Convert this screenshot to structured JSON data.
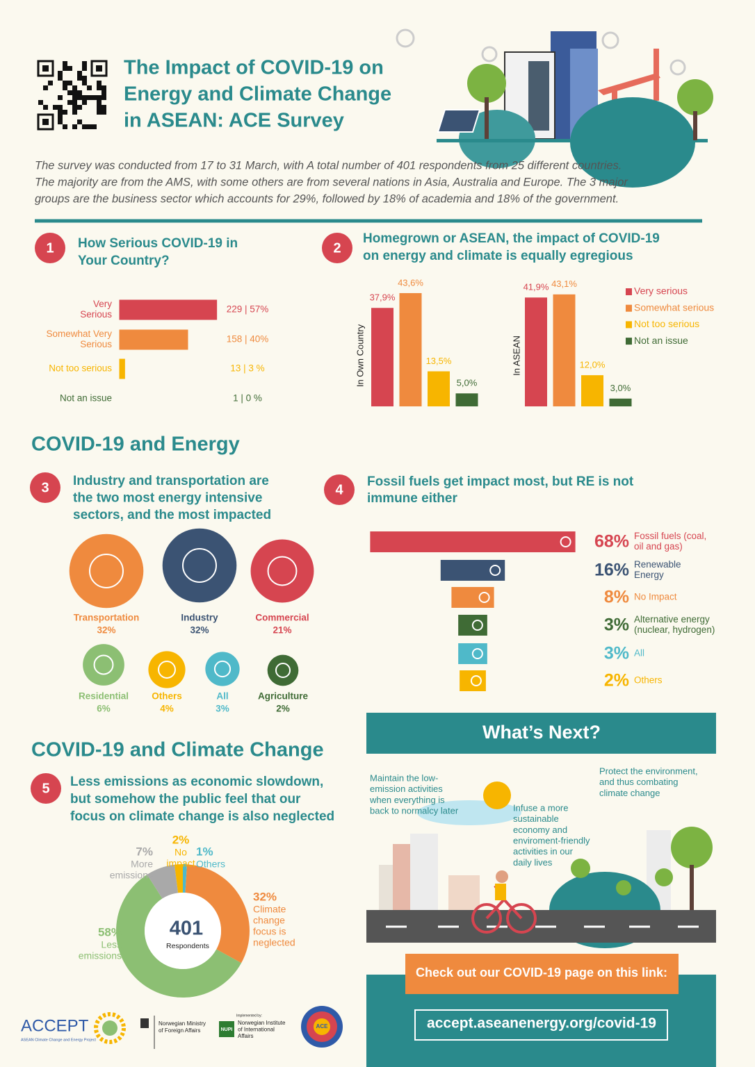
{
  "header": {
    "title": [
      "The Impact of COVID-19 on",
      "Energy and Climate Change",
      "in ASEAN: ACE Survey"
    ]
  },
  "intro": [
    "The survey was conducted from 17 to 31 March, with A total number of 401 respondents from 25 different countries.",
    "The majority are from the AMS, with some others are from several nations in Asia, Australia and Europe. The 3 major",
    "groups are the business sector which accounts for 29%, followed by 18% of academia and 18% of the government."
  ],
  "section1": {
    "number": "1",
    "title": [
      "How Serious COVID-19 in",
      "Your Country?"
    ],
    "chart": {
      "type": "bar",
      "categories": [
        [
          "Very",
          "Serious"
        ],
        [
          "Somewhat Very",
          "Serious"
        ],
        [
          "Not too serious"
        ],
        [
          "Not an issue"
        ]
      ],
      "values": [
        57,
        40,
        3,
        0
      ],
      "value_labels": [
        "229 | 57%",
        "158 | 40%",
        "13 | 3 %",
        "1 | 0 %"
      ],
      "colors": [
        "#d64550",
        "#ef8a3e",
        "#f7b500",
        "#3f6b35"
      ]
    }
  },
  "section2": {
    "number": "2",
    "title": [
      "Homegrown or ASEAN, the impact of COVID-19",
      "on energy and climate is equally egregious"
    ],
    "legend": [
      "Very serious",
      "Somewhat serious",
      "Not too serious",
      "Not an issue"
    ],
    "colors": [
      "#d64550",
      "#ef8a3e",
      "#f7b500",
      "#3f6b35"
    ],
    "charts": [
      {
        "type": "bar",
        "ylabel": "In Own Country",
        "values": [
          37.9,
          43.6,
          13.5,
          5.0
        ],
        "value_labels": [
          "37,9%",
          "43,6%",
          "13,5%",
          "5,0%"
        ]
      },
      {
        "type": "bar",
        "ylabel": "In ASEAN",
        "values": [
          41.9,
          43.1,
          12.0,
          3.0
        ],
        "value_labels": [
          "41,9%",
          "43,1%",
          "12,0%",
          "3,0%"
        ]
      }
    ]
  },
  "energy_heading": "COVID-19 and Energy",
  "section3": {
    "number": "3",
    "title": [
      "Industry and transportation are",
      "the two most energy intensive",
      "sectors, and the most impacted"
    ],
    "chart": {
      "type": "bubble",
      "items": [
        {
          "name": "Transportation",
          "value": 32,
          "value_label": "32%",
          "color": "#ef8a3e"
        },
        {
          "name": "Industry",
          "value": 32,
          "value_label": "32%",
          "color": "#3b5373"
        },
        {
          "name": "Commercial",
          "value": 21,
          "value_label": "21%",
          "color": "#d64550"
        },
        {
          "name": "Residential",
          "value": 6,
          "value_label": "6%",
          "color": "#8cbf73"
        },
        {
          "name": "Others",
          "value": 4,
          "value_label": "4%",
          "color": "#f7b500"
        },
        {
          "name": "All",
          "value": 3,
          "value_label": "3%",
          "color": "#4fb9c9"
        },
        {
          "name": "Agriculture",
          "value": 2,
          "value_label": "2%",
          "color": "#3f6b35"
        }
      ]
    }
  },
  "section4": {
    "number": "4",
    "title": [
      "Fossil fuels get impact most, but RE is not",
      "immune either"
    ],
    "chart": {
      "type": "funnel",
      "items": [
        {
          "value": 68,
          "value_label": "68%",
          "name": [
            "Fossil fuels (coal,",
            "oil and gas)"
          ],
          "color": "#d64550"
        },
        {
          "value": 16,
          "value_label": "16%",
          "name": [
            "Renewable",
            "Energy"
          ],
          "color": "#3b5373"
        },
        {
          "value": 8,
          "value_label": "8%",
          "name": [
            "No Impact"
          ],
          "color": "#ef8a3e"
        },
        {
          "value": 3,
          "value_label": "3%",
          "name": [
            "Alternative energy",
            "(nuclear, hydrogen)"
          ],
          "color": "#3f6b35"
        },
        {
          "value": 3,
          "value_label": "3%",
          "name": [
            "All"
          ],
          "color": "#4fb9c9"
        },
        {
          "value": 2,
          "value_label": "2%",
          "name": [
            "Others"
          ],
          "color": "#f7b500"
        }
      ]
    }
  },
  "climate_heading": "COVID-19 and Climate Change",
  "section5": {
    "number": "5",
    "title": [
      "Less emissions as economic slowdown,",
      "but somehow the public feel that our",
      "focus on climate change is also neglected"
    ],
    "chart": {
      "type": "donut",
      "total": "401",
      "total_label": "Respondents",
      "slices": [
        {
          "value": 1,
          "value_label": "1%",
          "name": [
            "Others"
          ],
          "color": "#4fb9c9"
        },
        {
          "value": 32,
          "value_label": "32%",
          "name": [
            "Climate",
            "change",
            "focus is",
            "neglected"
          ],
          "color": "#ef8a3e"
        },
        {
          "value": 58,
          "value_label": "58%",
          "name": [
            "Less",
            "emissions"
          ],
          "color": "#8cbf73"
        },
        {
          "value": 7,
          "value_label": "7%",
          "name": [
            "More",
            "emissions"
          ],
          "color": "#a9a9a9"
        },
        {
          "value": 2,
          "value_label": "2%",
          "name": [
            "No",
            "impact"
          ],
          "color": "#f7b500"
        }
      ]
    }
  },
  "whats_next": {
    "title": "What’s Next?",
    "points": [
      [
        "Maintain the low-",
        "emission activities",
        "when everything is",
        "back to normalcy later"
      ],
      [
        "Infuse a more",
        "sustainable",
        "economy and",
        "enviroment-friendly",
        "activities in our",
        "daily lives"
      ],
      [
        "Protect the environment,",
        "and thus combating",
        "climate change"
      ]
    ]
  },
  "footer": {
    "cta": "Check out our COVID-19 page on this link:",
    "link": "accept.aseanenergy.org/covid-19"
  },
  "logos": {
    "accept": "ACCEPT",
    "accept_sub": "ASEAN Climate Change and Energy Project",
    "ministry": [
      "Norwegian Ministry",
      "of Foreign Affairs"
    ],
    "implemented": "Implemented by:",
    "nupi": "NUPI",
    "institute": [
      "Norwegian Institute",
      "of International",
      "Affairs"
    ],
    "ace": "ACE"
  }
}
